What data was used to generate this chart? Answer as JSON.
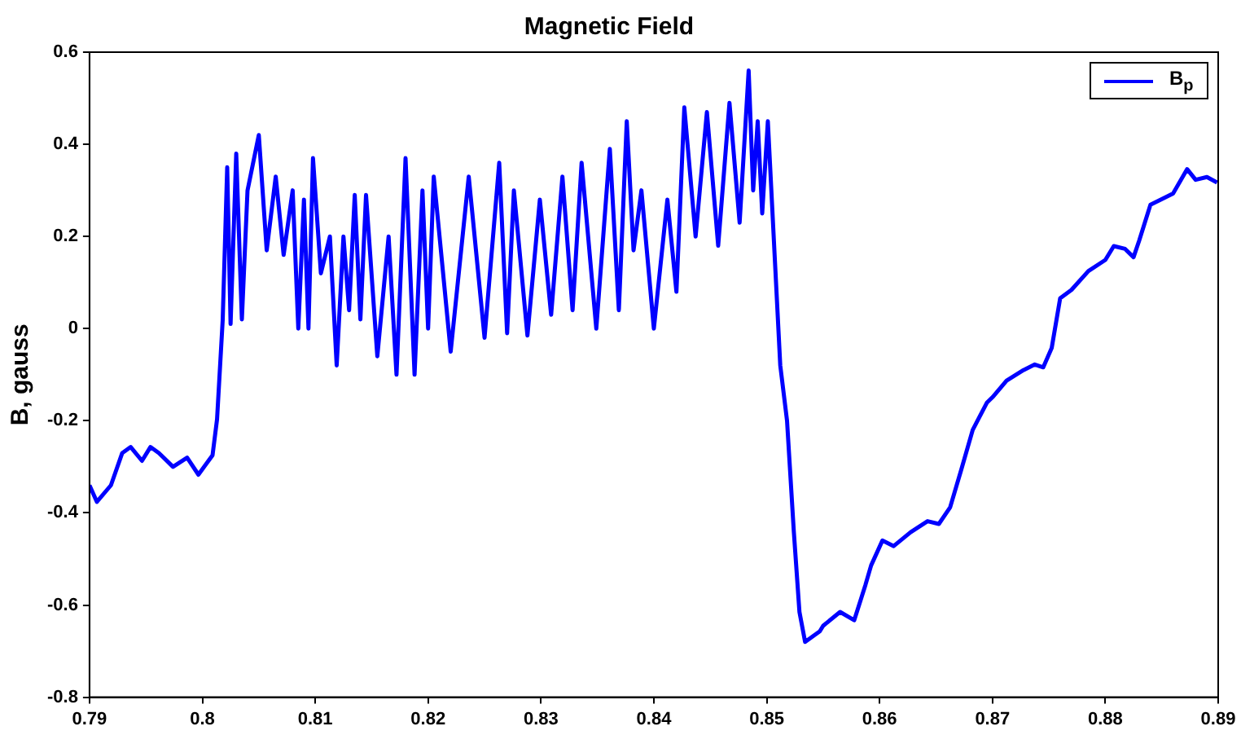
{
  "chart_data": {
    "type": "line",
    "title": "Magnetic Field",
    "ylabel": "B, gauss",
    "xlim": [
      0.79,
      0.89
    ],
    "xticks": [
      0.79,
      0.8,
      0.81,
      0.82,
      0.83,
      0.84,
      0.85,
      0.86,
      0.87,
      0.88,
      0.89
    ],
    "ylim": [
      -0.8,
      0.6
    ],
    "yticks": [
      -0.8,
      -0.6,
      -0.4,
      -0.2,
      0,
      0.2,
      0.4,
      0.6
    ],
    "grid": false,
    "legend": "top right",
    "marker": "none",
    "line_style": "solid",
    "series": [
      {
        "name": "B$_{p}$",
        "color": "#0000ff",
        "x": [
          0.79,
          0.79065,
          0.7919,
          0.7929,
          0.79365,
          0.79465,
          0.7954,
          0.79615,
          0.7974,
          0.79865,
          0.79965,
          0.8009,
          0.8013,
          0.8018,
          0.8022,
          0.8025,
          0.803,
          0.8035,
          0.804,
          0.805,
          0.8057,
          0.8065,
          0.8072,
          0.808,
          0.8085,
          0.809,
          0.8094,
          0.8098,
          0.8105,
          0.8113,
          0.8119,
          0.8125,
          0.813,
          0.8135,
          0.814,
          0.8145,
          0.8155,
          0.8165,
          0.8172,
          0.818,
          0.8188,
          0.8195,
          0.82,
          0.8205,
          0.822,
          0.8236,
          0.825,
          0.8263,
          0.827,
          0.8276,
          0.8288,
          0.8299,
          0.8309,
          0.8319,
          0.8328,
          0.8336,
          0.8349,
          0.8361,
          0.8369,
          0.8376,
          0.8382,
          0.8389,
          0.84,
          0.8412,
          0.842,
          0.8427,
          0.8437,
          0.8447,
          0.8457,
          0.8467,
          0.8476,
          0.8484,
          0.8488,
          0.8492,
          0.8496,
          0.8501,
          0.8507,
          0.8512,
          0.8518,
          0.8524,
          0.8529,
          0.8534,
          0.8547,
          0.855,
          0.8565,
          0.85775,
          0.85875,
          0.85925,
          0.86025,
          0.86125,
          0.86275,
          0.86425,
          0.86525,
          0.86625,
          0.86725,
          0.86825,
          0.8695,
          0.87,
          0.87125,
          0.87275,
          0.87375,
          0.8745,
          0.87525,
          0.876,
          0.877,
          0.8785,
          0.88,
          0.88075,
          0.88175,
          0.8825,
          0.883,
          0.884,
          0.886,
          0.88725,
          0.888,
          0.889,
          0.8899
        ],
        "values": [
          -0.34,
          -0.376,
          -0.34,
          -0.27,
          -0.257,
          -0.287,
          -0.257,
          -0.27,
          -0.3,
          -0.28,
          -0.317,
          -0.275,
          -0.197,
          0.018,
          0.35,
          0.01,
          0.38,
          0.02,
          0.3,
          0.42,
          0.17,
          0.33,
          0.16,
          0.3,
          0.0,
          0.28,
          0.0,
          0.37,
          0.12,
          0.2,
          -0.08,
          0.2,
          0.04,
          0.29,
          0.02,
          0.29,
          -0.06,
          0.2,
          -0.1,
          0.37,
          -0.1,
          0.3,
          0.0,
          0.33,
          -0.05,
          0.33,
          -0.02,
          0.36,
          -0.01,
          0.3,
          -0.015,
          0.28,
          0.03,
          0.33,
          0.04,
          0.36,
          0.0,
          0.39,
          0.04,
          0.45,
          0.17,
          0.3,
          0.0,
          0.28,
          0.08,
          0.48,
          0.2,
          0.47,
          0.18,
          0.49,
          0.23,
          0.56,
          0.3,
          0.45,
          0.25,
          0.45,
          0.16,
          -0.08,
          -0.2,
          -0.44,
          -0.615,
          -0.68,
          -0.657,
          -0.645,
          -0.615,
          -0.633,
          -0.556,
          -0.514,
          -0.46,
          -0.472,
          -0.442,
          -0.418,
          -0.424,
          -0.388,
          -0.305,
          -0.22,
          -0.161,
          -0.149,
          -0.113,
          -0.09,
          -0.078,
          -0.084,
          -0.042,
          0.066,
          0.084,
          0.125,
          0.149,
          0.179,
          0.173,
          0.155,
          0.191,
          0.269,
          0.293,
          0.346,
          0.323,
          0.329,
          0.317
        ]
      }
    ]
  }
}
